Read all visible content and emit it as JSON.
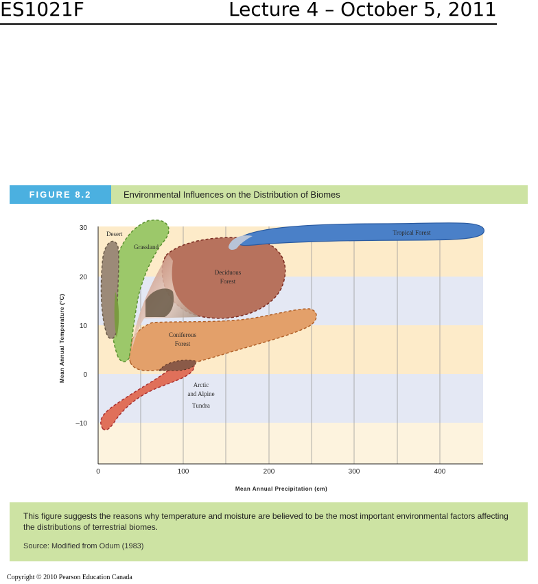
{
  "header": {
    "course": "ES1021F",
    "lecture": "Lecture 4 – October 5, 2011"
  },
  "figure": {
    "label": "FIGURE 8.2",
    "title": "Environmental Influences on the Distribution of Biomes"
  },
  "diagram": {
    "x_axis_title": "Mean Annual Precipitation (cm)",
    "y_axis_title": "Mean Annual Temperature (°C)",
    "x_ticks": [
      "0",
      "100",
      "200",
      "300",
      "400"
    ],
    "y_ticks": [
      "30",
      "20",
      "10",
      "0",
      "–10"
    ],
    "regions": {
      "desert": "Desert",
      "grassland": "Grassland",
      "deciduous_line1": "Deciduous",
      "deciduous_line2": "Forest",
      "tropical": "Tropical Forest",
      "coniferous_line1": "Coniferous",
      "coniferous_line2": "Forest",
      "tundra_line1": "Arctic",
      "tundra_line2": "and Alpine",
      "tundra_line3": "Tundra"
    },
    "colors": {
      "desert": "#9c8a78",
      "grassland": "#9cc86a",
      "deciduous": "#b7725d",
      "tropical": "#4a80c8",
      "coniferous": "#e3a06a",
      "tundra": "#e0705a",
      "band_warm": "#fdebc9",
      "band_cool": "#e4e8f4"
    }
  },
  "caption": {
    "text": "This figure suggests the reasons why temperature and moisture are believed to be the most important environmental factors affecting the distributions of terrestrial biomes.",
    "source": "Source: Modified from Odum (1983)"
  },
  "copyright": "Copyright © 2010 Pearson Education Canada"
}
